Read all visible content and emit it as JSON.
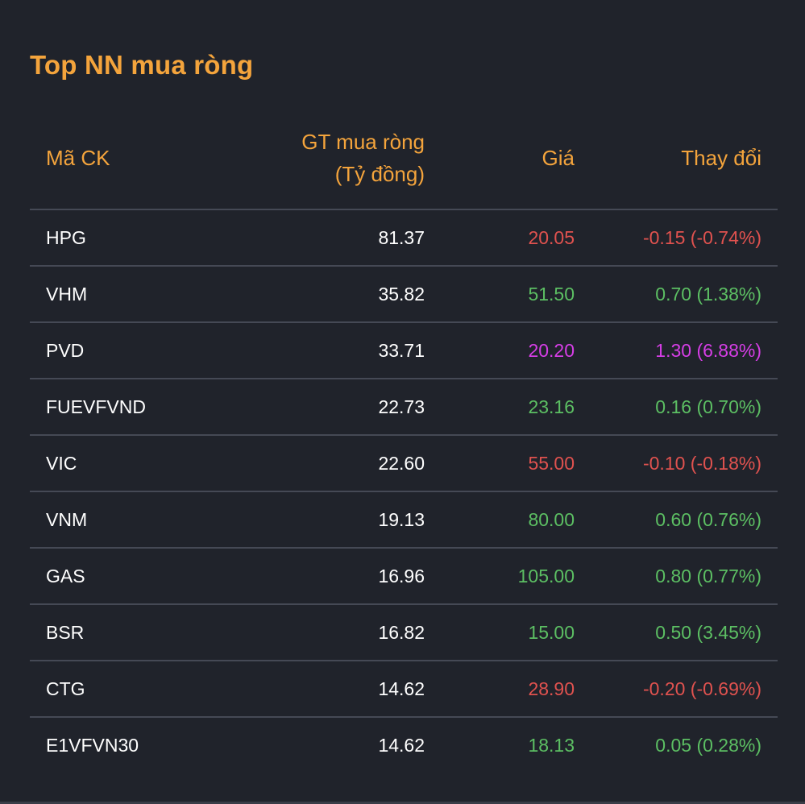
{
  "title": "Top NN mua ròng",
  "colors": {
    "accent": "#f4a43c",
    "background": "#20232b",
    "down": "#e0524f",
    "up": "#5cbf63",
    "ceiling": "#d63ee6",
    "divider": "#454955"
  },
  "table": {
    "headers": {
      "code": "Mã CK",
      "value_line1": "GT mua ròng",
      "value_line2": "(Tỷ đồng)",
      "price": "Giá",
      "change": "Thay đổi"
    },
    "rows": [
      {
        "code": "HPG",
        "value": "81.37",
        "price": "20.05",
        "change": "-0.15 (-0.74%)",
        "status": "down"
      },
      {
        "code": "VHM",
        "value": "35.82",
        "price": "51.50",
        "change": "0.70 (1.38%)",
        "status": "up"
      },
      {
        "code": "PVD",
        "value": "33.71",
        "price": "20.20",
        "change": "1.30 (6.88%)",
        "status": "ceil"
      },
      {
        "code": "FUEVFVND",
        "value": "22.73",
        "price": "23.16",
        "change": "0.16 (0.70%)",
        "status": "up"
      },
      {
        "code": "VIC",
        "value": "22.60",
        "price": "55.00",
        "change": "-0.10 (-0.18%)",
        "status": "down"
      },
      {
        "code": "VNM",
        "value": "19.13",
        "price": "80.00",
        "change": "0.60 (0.76%)",
        "status": "up"
      },
      {
        "code": "GAS",
        "value": "16.96",
        "price": "105.00",
        "change": "0.80 (0.77%)",
        "status": "up"
      },
      {
        "code": "BSR",
        "value": "16.82",
        "price": "15.00",
        "change": "0.50 (3.45%)",
        "status": "up"
      },
      {
        "code": "CTG",
        "value": "14.62",
        "price": "28.90",
        "change": "-0.20 (-0.69%)",
        "status": "down"
      },
      {
        "code": "E1VFVN30",
        "value": "14.62",
        "price": "18.13",
        "change": "0.05 (0.28%)",
        "status": "up"
      }
    ]
  }
}
